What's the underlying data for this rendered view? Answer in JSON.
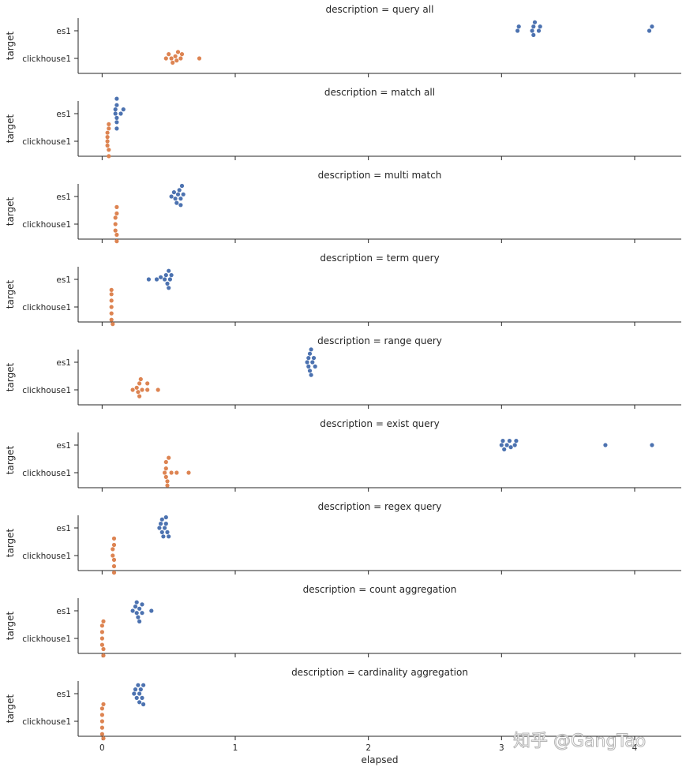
{
  "chart_data": {
    "type": "scatter",
    "kind": "swarm",
    "facet_by": "description",
    "panel_title_prefix": "description = ",
    "xlabel": "elapsed",
    "ylabel": "target",
    "xlim": [
      -0.18,
      4.35
    ],
    "xticks": [
      0,
      1,
      2,
      3,
      4
    ],
    "categories": [
      "es1",
      "clickhouse1"
    ],
    "colors": {
      "es1": "#4c72b0",
      "clickhouse1": "#dd8452"
    },
    "panels": [
      {
        "description": "query all",
        "es1": [
          3.12,
          3.13,
          3.23,
          3.24,
          3.24,
          3.25,
          3.28,
          3.29,
          4.11,
          4.13
        ],
        "clickhouse1": [
          0.48,
          0.5,
          0.52,
          0.53,
          0.55,
          0.56,
          0.57,
          0.59,
          0.6,
          0.73
        ]
      },
      {
        "description": "match all",
        "es1": [
          0.1,
          0.1,
          0.11,
          0.11,
          0.11,
          0.11,
          0.11,
          0.11,
          0.14,
          0.16
        ],
        "clickhouse1": [
          0.04,
          0.04,
          0.04,
          0.04,
          0.05,
          0.05,
          0.05,
          0.05,
          0.05,
          0.06
        ]
      },
      {
        "description": "multi match",
        "es1": [
          0.52,
          0.54,
          0.55,
          0.56,
          0.57,
          0.58,
          0.59,
          0.59,
          0.6,
          0.61
        ],
        "clickhouse1": [
          0.1,
          0.1,
          0.1,
          0.11,
          0.11,
          0.11,
          0.11,
          0.11,
          0.11,
          0.12
        ]
      },
      {
        "description": "term query",
        "es1": [
          0.35,
          0.41,
          0.44,
          0.47,
          0.48,
          0.49,
          0.5,
          0.5,
          0.51,
          0.52
        ],
        "clickhouse1": [
          0.07,
          0.07,
          0.07,
          0.07,
          0.07,
          0.07,
          0.08,
          0.08,
          0.08,
          0.08
        ]
      },
      {
        "description": "range query",
        "es1": [
          1.54,
          1.55,
          1.55,
          1.56,
          1.56,
          1.57,
          1.57,
          1.58,
          1.59,
          1.6
        ],
        "clickhouse1": [
          0.23,
          0.26,
          0.27,
          0.28,
          0.28,
          0.29,
          0.3,
          0.34,
          0.34,
          0.42
        ]
      },
      {
        "description": "exist query",
        "es1": [
          3.0,
          3.01,
          3.02,
          3.04,
          3.06,
          3.07,
          3.1,
          3.11,
          3.78,
          4.13
        ],
        "clickhouse1": [
          0.47,
          0.48,
          0.48,
          0.48,
          0.49,
          0.49,
          0.5,
          0.52,
          0.56,
          0.65
        ]
      },
      {
        "description": "regex query",
        "es1": [
          0.43,
          0.44,
          0.45,
          0.45,
          0.46,
          0.47,
          0.48,
          0.48,
          0.49,
          0.5
        ],
        "clickhouse1": [
          0.08,
          0.08,
          0.09,
          0.09,
          0.09,
          0.09,
          0.09,
          0.09,
          0.1,
          0.1
        ]
      },
      {
        "description": "count aggregation",
        "es1": [
          0.23,
          0.25,
          0.26,
          0.26,
          0.27,
          0.28,
          0.28,
          0.3,
          0.3,
          0.37
        ],
        "clickhouse1": [
          0.0,
          0.0,
          0.0,
          0.0,
          0.01,
          0.01,
          0.01,
          0.01,
          0.01,
          0.01
        ]
      },
      {
        "description": "cardinality aggregation",
        "es1": [
          0.24,
          0.25,
          0.26,
          0.27,
          0.28,
          0.28,
          0.29,
          0.3,
          0.31,
          0.31
        ],
        "clickhouse1": [
          0.0,
          0.0,
          0.0,
          0.0,
          0.0,
          0.01,
          0.01,
          0.01,
          0.01,
          0.01
        ]
      }
    ]
  },
  "watermark": "知乎 @GangTao"
}
